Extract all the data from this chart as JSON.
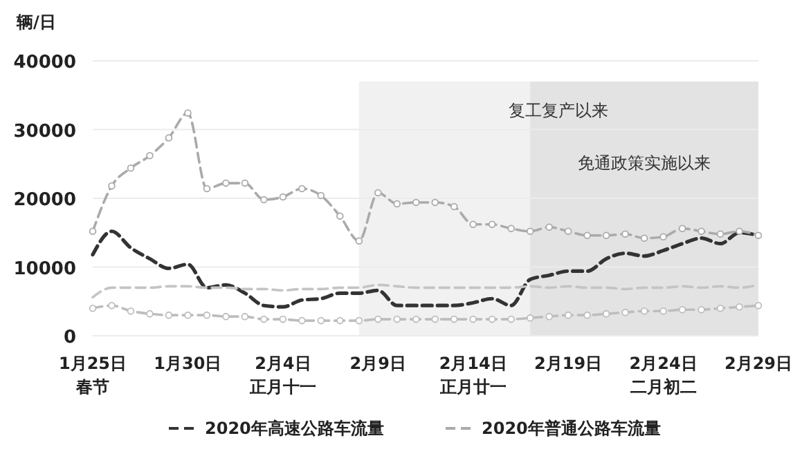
{
  "chart_data": {
    "type": "line",
    "ylabel": "辆/日",
    "x": [
      "2020-01-25",
      "2020-01-26",
      "2020-01-27",
      "2020-01-28",
      "2020-01-29",
      "2020-01-30",
      "2020-01-31",
      "2020-02-01",
      "2020-02-02",
      "2020-02-03",
      "2020-02-04",
      "2020-02-05",
      "2020-02-06",
      "2020-02-07",
      "2020-02-08",
      "2020-02-09",
      "2020-02-10",
      "2020-02-11",
      "2020-02-12",
      "2020-02-13",
      "2020-02-14",
      "2020-02-15",
      "2020-02-16",
      "2020-02-17",
      "2020-02-18",
      "2020-02-19",
      "2020-02-20",
      "2020-02-21",
      "2020-02-22",
      "2020-02-23",
      "2020-02-24",
      "2020-02-25",
      "2020-02-26",
      "2020-02-27",
      "2020-02-28",
      "2020-02-29"
    ],
    "series": [
      {
        "name": "2020年高速公路车流量",
        "color": "#333333",
        "line_style": "dashed",
        "marker": "none",
        "values": [
          11800,
          15200,
          12800,
          11200,
          9800,
          10400,
          7000,
          7400,
          6200,
          4400,
          4200,
          5200,
          5400,
          6200,
          6200,
          6600,
          4400,
          4400,
          4400,
          4400,
          4800,
          5400,
          4400,
          8200,
          8800,
          9400,
          9400,
          11200,
          12000,
          11600,
          12400,
          13400,
          14200,
          13400,
          15000,
          14600
        ]
      },
      {
        "name": "2020年普通公路车流量",
        "color": "#aaaaaa",
        "line_style": "dashed",
        "marker": "circle",
        "values": [
          15200,
          21800,
          24400,
          26200,
          28800,
          32400,
          21400,
          22200,
          22200,
          19800,
          20200,
          21400,
          20400,
          17400,
          13800,
          20800,
          19200,
          19400,
          19400,
          18800,
          16200,
          16200,
          15600,
          15200,
          15800,
          15200,
          14600,
          14600,
          14800,
          14200,
          14400,
          15600,
          15200,
          14800,
          15200,
          14600
        ]
      },
      {
        "color": "#c4c4c4",
        "line_style": "dashed",
        "marker": "none",
        "values": [
          5600,
          7000,
          7000,
          7000,
          7200,
          7200,
          7000,
          7000,
          6800,
          6800,
          6600,
          6800,
          6800,
          7000,
          7000,
          7400,
          7200,
          7000,
          7000,
          7000,
          7000,
          7000,
          7000,
          7200,
          7000,
          7200,
          7000,
          7000,
          6800,
          7000,
          7000,
          7200,
          7000,
          7200,
          7000,
          7400
        ]
      },
      {
        "color": "#bdbdbd",
        "line_style": "dashed",
        "marker": "circle",
        "values": [
          4000,
          4400,
          3600,
          3200,
          3000,
          3000,
          3000,
          2800,
          2800,
          2400,
          2400,
          2200,
          2200,
          2200,
          2200,
          2400,
          2400,
          2400,
          2400,
          2400,
          2400,
          2400,
          2400,
          2600,
          2800,
          3000,
          3000,
          3200,
          3400,
          3600,
          3600,
          3800,
          3800,
          4000,
          4200,
          4400
        ]
      }
    ],
    "xlim": [
      "2020-01-25",
      "2020-02-29"
    ],
    "xticks": [
      {
        "value": "2020-01-25",
        "label": "1月25日春节"
      },
      {
        "value": "2020-01-30",
        "label": "1月30日"
      },
      {
        "value": "2020-02-04",
        "label": "2月4日正月十一"
      },
      {
        "value": "2020-02-09",
        "label": "2月9日"
      },
      {
        "value": "2020-02-14",
        "label": "2月14日正月廿一"
      },
      {
        "value": "2020-02-19",
        "label": "2月19日"
      },
      {
        "value": "2020-02-24",
        "label": "2月24日二月初二"
      },
      {
        "value": "2020-02-29",
        "label": "2月29日"
      }
    ],
    "ylim": [
      0,
      40000
    ],
    "yticks": [
      0,
      10000,
      20000,
      30000,
      40000
    ],
    "grid": "y",
    "legend": "bottom",
    "bands": [
      {
        "axis": "x",
        "from": "2020-02-08",
        "to": "2020-02-29",
        "label": "复工复产以来",
        "color": "#f1f1f1"
      },
      {
        "axis": "x",
        "from": "2020-02-17",
        "to": "2020-02-29",
        "label": "免通政策实施以来",
        "color": "#e3e3e3"
      }
    ]
  }
}
